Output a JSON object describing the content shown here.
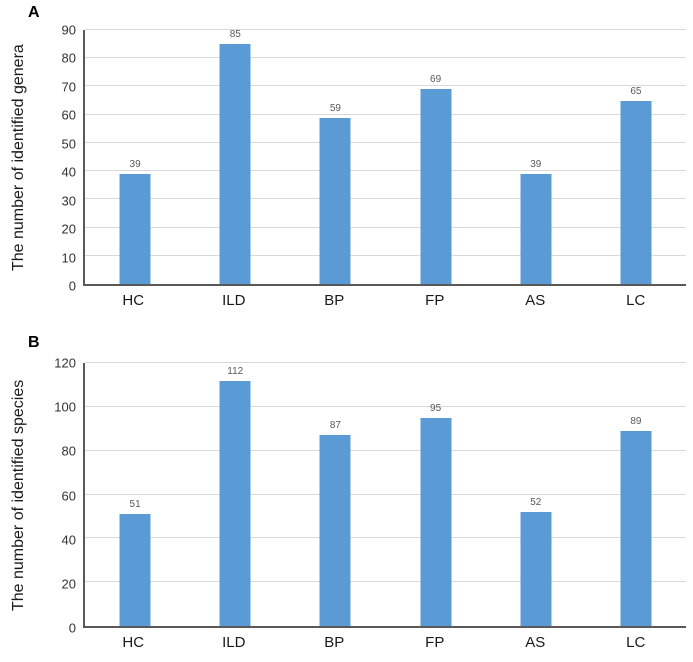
{
  "figure": {
    "background": "#ffffff"
  },
  "colors": {
    "bar": "#5b9bd5",
    "gridline": "#d9d9d9",
    "axis": "#595959",
    "tick_label": "#333333",
    "value_label": "#595959",
    "category_label": "#1a1a1a"
  },
  "chart_data": [
    {
      "type": "bar",
      "panel_label": "A",
      "title": "",
      "xlabel": "",
      "ylabel": "The number of identified genera",
      "categories": [
        "HC",
        "ILD",
        "BP",
        "FP",
        "AS",
        "LC"
      ],
      "values": [
        39,
        85,
        59,
        69,
        39,
        65
      ],
      "ylim": [
        0,
        90
      ],
      "yticks": [
        0,
        10,
        20,
        30,
        40,
        50,
        60,
        70,
        80,
        90
      ],
      "grid": true,
      "legend": false,
      "data_labels": [
        "39",
        "85",
        "59",
        "69",
        "39",
        "65"
      ]
    },
    {
      "type": "bar",
      "panel_label": "B",
      "title": "",
      "xlabel": "",
      "ylabel": "The number of identified species",
      "categories": [
        "HC",
        "ILD",
        "BP",
        "FP",
        "AS",
        "LC"
      ],
      "values": [
        51,
        112,
        87,
        95,
        52,
        89
      ],
      "ylim": [
        0,
        120
      ],
      "yticks": [
        0,
        20,
        40,
        60,
        80,
        100,
        120
      ],
      "grid": true,
      "legend": false,
      "data_labels": [
        "51",
        "112",
        "87",
        "95",
        "52",
        "89"
      ]
    }
  ]
}
